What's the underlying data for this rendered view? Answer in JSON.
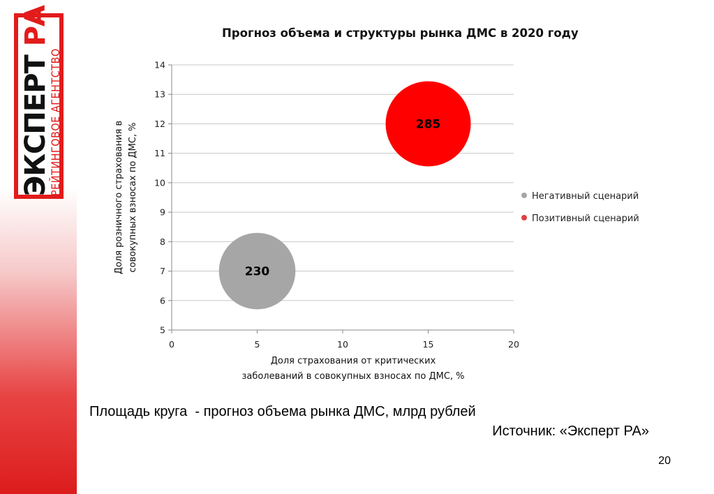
{
  "logo": {
    "main": "ЭКСПЕРТ ",
    "accent": "РА",
    "sub": "РЕЙТИНГОВОЕ АГЕНТСТВО"
  },
  "chart_data": {
    "type": "bubble",
    "title": "Прогноз объема и структуры рынка ДМС в 2020 году",
    "xlabel_lines": [
      "Доля страхования от критических",
      "заболеваний в совокупных взносах по ДМС, %"
    ],
    "ylabel_lines": [
      "Доля розничного страхования в",
      "совокупных взносах по ДМС, %"
    ],
    "xlim": [
      0,
      20
    ],
    "ylim": [
      5,
      14
    ],
    "xticks": [
      "0",
      "5",
      "10",
      "15",
      "20"
    ],
    "yticks": [
      "5",
      "6",
      "7",
      "8",
      "9",
      "10",
      "11",
      "12",
      "13",
      "14"
    ],
    "grid": "horizontal",
    "legend_position": "right",
    "series": [
      {
        "name": "Негативный сценарий",
        "color": "#a6a6a6",
        "legend_color": "#a6a6a6",
        "x": 5,
        "y": 7,
        "size": 230,
        "label": "230"
      },
      {
        "name": "Позитивный сценарий",
        "color": "#ff0000",
        "legend_color": "#e0403f",
        "x": 15,
        "y": 12,
        "size": 285,
        "label": "285"
      }
    ]
  },
  "note": "Площадь круга  - прогноз объема рынка ДМС, млрд рублей",
  "source": "Источник: «Эксперт РА»",
  "page_number": "20"
}
